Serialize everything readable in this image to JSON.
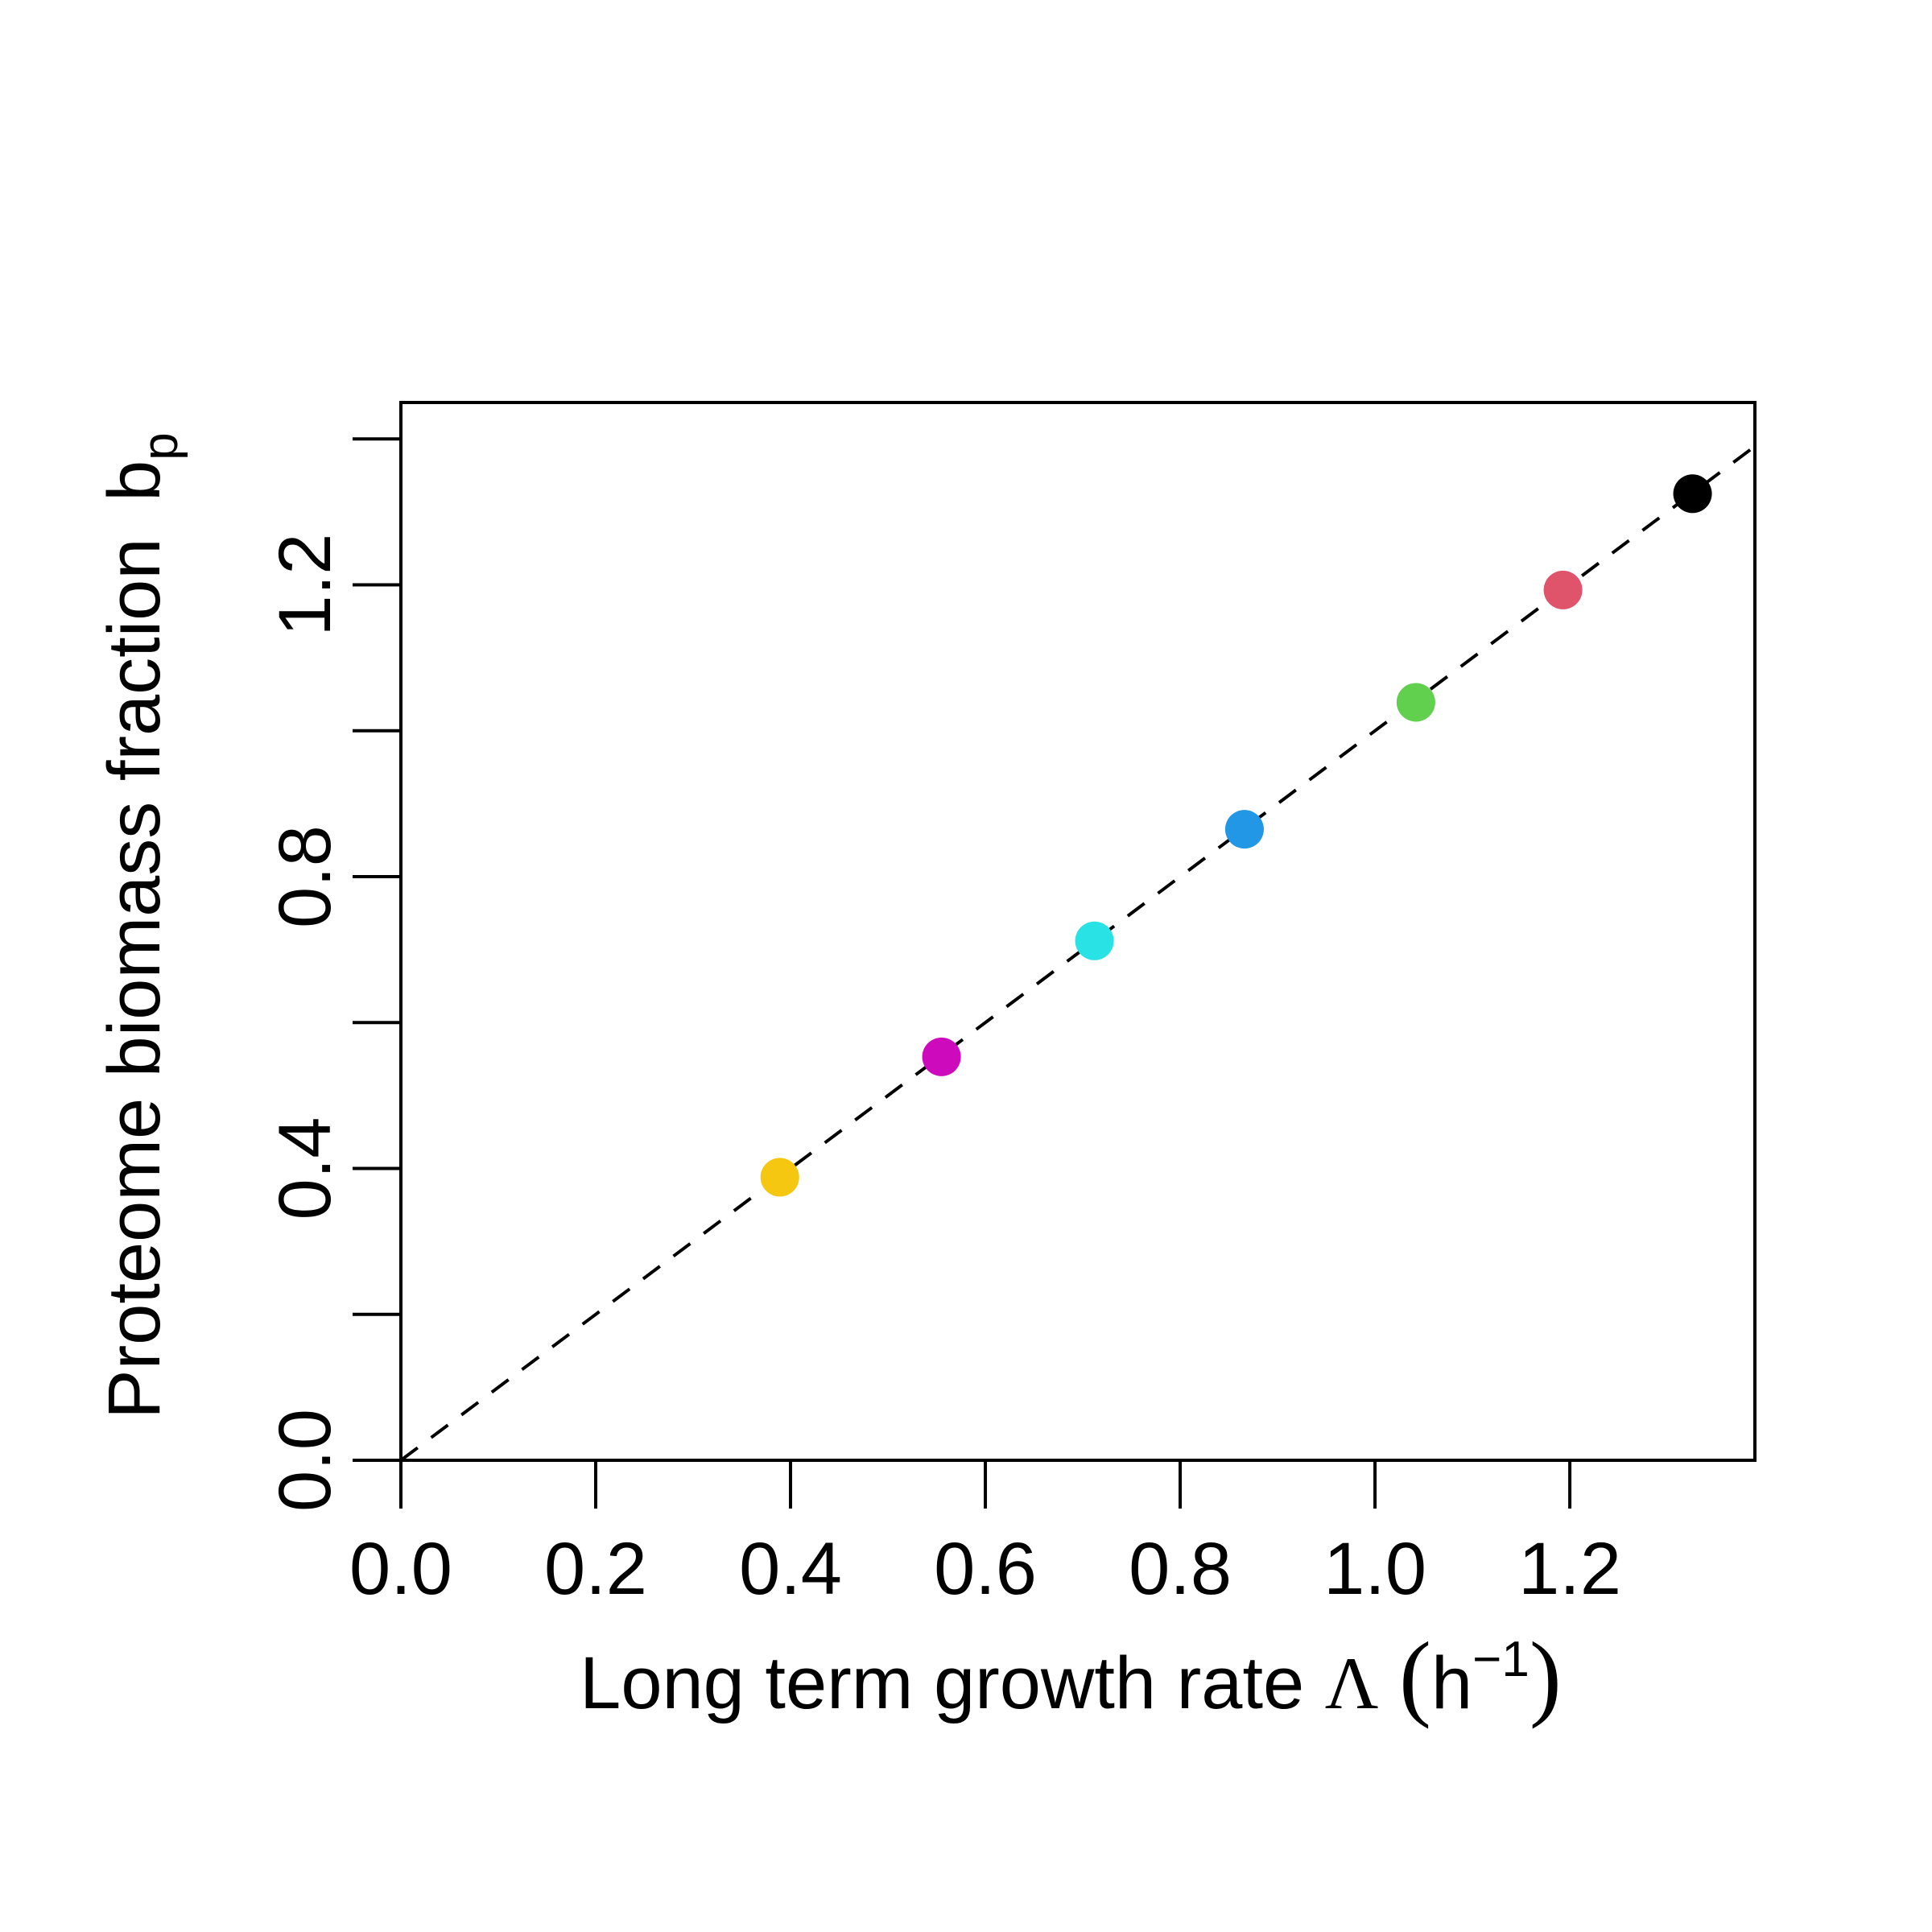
{
  "chart_data": {
    "type": "scatter",
    "xlabel_main": "Long term growth rate",
    "xlabel_symbol": "Λ",
    "xlabel_unit_base": "h",
    "xlabel_unit_exp": "−1",
    "ylabel_main": "Proteome biomass fraction",
    "ylabel_base": "b",
    "ylabel_sub": "p",
    "xlim": [
      0,
      1.39
    ],
    "ylim": [
      0,
      1.45
    ],
    "x_ticks": [
      0.0,
      0.2,
      0.4,
      0.6,
      0.8,
      1.0,
      1.2
    ],
    "x_tick_labels": [
      "0.0",
      "0.2",
      "0.4",
      "0.6",
      "0.8",
      "1.0",
      "1.2"
    ],
    "y_ticks": [
      0.0,
      0.2,
      0.4,
      0.6,
      0.8,
      1.0,
      1.2,
      1.4
    ],
    "y_tick_labels": [
      "0.0",
      "",
      "0.4",
      "",
      "0.8",
      "",
      "1.2",
      ""
    ],
    "reference_line": {
      "style": "dashed",
      "slope": 1,
      "intercept": 0,
      "color": "#000000"
    },
    "grid": false,
    "points": [
      {
        "x": 0.389,
        "y": 0.388,
        "color": "#F5C710"
      },
      {
        "x": 0.555,
        "y": 0.553,
        "color": "#CD0BBC"
      },
      {
        "x": 0.712,
        "y": 0.712,
        "color": "#28E2E5"
      },
      {
        "x": 0.866,
        "y": 0.865,
        "color": "#2297E6"
      },
      {
        "x": 1.042,
        "y": 1.039,
        "color": "#61D04F"
      },
      {
        "x": 1.193,
        "y": 1.193,
        "color": "#DF536B"
      },
      {
        "x": 1.326,
        "y": 1.325,
        "color": "#000000"
      }
    ]
  }
}
